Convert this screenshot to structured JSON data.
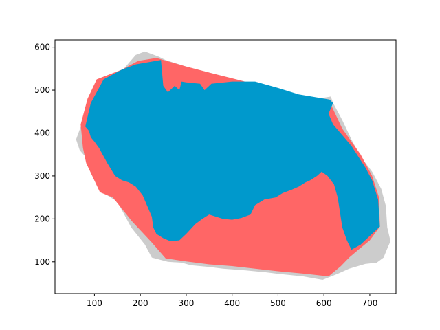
{
  "chart_data": {
    "type": "area",
    "title": "",
    "xlabel": "",
    "ylabel": "",
    "xlim": [
      14,
      757
    ],
    "ylim": [
      26,
      617
    ],
    "xticks": [
      100,
      200,
      300,
      400,
      500,
      600,
      700
    ],
    "yticks": [
      100,
      200,
      300,
      400,
      500,
      600
    ],
    "grid": false,
    "series": [
      {
        "role": "outline",
        "color": "#cccccc",
        "points": [
          [
            60,
            385
          ],
          [
            72,
            420
          ],
          [
            90,
            480
          ],
          [
            120,
            525
          ],
          [
            160,
            545
          ],
          [
            190,
            582
          ],
          [
            210,
            590
          ],
          [
            240,
            578
          ],
          [
            255,
            570
          ],
          [
            300,
            555
          ],
          [
            360,
            538
          ],
          [
            420,
            522
          ],
          [
            460,
            508
          ],
          [
            500,
            500
          ],
          [
            545,
            480
          ],
          [
            575,
            478
          ],
          [
            615,
            485
          ],
          [
            620,
            470
          ],
          [
            640,
            430
          ],
          [
            660,
            385
          ],
          [
            680,
            345
          ],
          [
            705,
            310
          ],
          [
            725,
            270
          ],
          [
            735,
            230
          ],
          [
            738,
            180
          ],
          [
            745,
            148
          ],
          [
            737,
            128
          ],
          [
            730,
            110
          ],
          [
            715,
            98
          ],
          [
            690,
            95
          ],
          [
            655,
            84
          ],
          [
            630,
            72
          ],
          [
            597,
            58
          ],
          [
            555,
            66
          ],
          [
            500,
            72
          ],
          [
            470,
            76
          ],
          [
            430,
            80
          ],
          [
            380,
            84
          ],
          [
            350,
            88
          ],
          [
            310,
            92
          ],
          [
            290,
            98
          ],
          [
            260,
            100
          ],
          [
            225,
            110
          ],
          [
            210,
            140
          ],
          [
            180,
            180
          ],
          [
            150,
            240
          ],
          [
            120,
            260
          ],
          [
            100,
            290
          ],
          [
            80,
            345
          ],
          [
            68,
            360
          ]
        ]
      },
      {
        "role": "region",
        "color": "#ff6666",
        "points": [
          [
            70,
            420
          ],
          [
            85,
            480
          ],
          [
            105,
            525
          ],
          [
            160,
            548
          ],
          [
            195,
            568
          ],
          [
            235,
            575
          ],
          [
            300,
            555
          ],
          [
            360,
            538
          ],
          [
            420,
            522
          ],
          [
            470,
            508
          ],
          [
            545,
            485
          ],
          [
            610,
            478
          ],
          [
            640,
            410
          ],
          [
            680,
            350
          ],
          [
            705,
            300
          ],
          [
            720,
            250
          ],
          [
            722,
            182
          ],
          [
            700,
            150
          ],
          [
            675,
            128
          ],
          [
            655,
            110
          ],
          [
            637,
            90
          ],
          [
            610,
            66
          ],
          [
            560,
            72
          ],
          [
            500,
            78
          ],
          [
            450,
            84
          ],
          [
            400,
            90
          ],
          [
            350,
            94
          ],
          [
            300,
            101
          ],
          [
            255,
            108
          ],
          [
            225,
            145
          ],
          [
            182,
            194
          ],
          [
            140,
            250
          ],
          [
            112,
            262
          ],
          [
            82,
            330
          ],
          [
            75,
            365
          ]
        ]
      },
      {
        "role": "core",
        "color": "#0099cc",
        "points": [
          [
            80,
            415
          ],
          [
            92,
            470
          ],
          [
            120,
            525
          ],
          [
            160,
            548
          ],
          [
            190,
            560
          ],
          [
            245,
            570
          ],
          [
            250,
            510
          ],
          [
            260,
            495
          ],
          [
            275,
            510
          ],
          [
            285,
            500
          ],
          [
            290,
            520
          ],
          [
            300,
            518
          ],
          [
            330,
            515
          ],
          [
            340,
            500
          ],
          [
            355,
            515
          ],
          [
            400,
            520
          ],
          [
            450,
            520
          ],
          [
            500,
            505
          ],
          [
            545,
            490
          ],
          [
            612,
            478
          ],
          [
            620,
            470
          ],
          [
            610,
            445
          ],
          [
            620,
            420
          ],
          [
            640,
            395
          ],
          [
            660,
            370
          ],
          [
            690,
            320
          ],
          [
            705,
            290
          ],
          [
            718,
            245
          ],
          [
            722,
            182
          ],
          [
            700,
            160
          ],
          [
            680,
            140
          ],
          [
            660,
            128
          ],
          [
            650,
            150
          ],
          [
            640,
            180
          ],
          [
            635,
            215
          ],
          [
            630,
            250
          ],
          [
            622,
            280
          ],
          [
            608,
            300
          ],
          [
            595,
            310
          ],
          [
            585,
            300
          ],
          [
            570,
            290
          ],
          [
            560,
            285
          ],
          [
            545,
            275
          ],
          [
            530,
            268
          ],
          [
            510,
            260
          ],
          [
            495,
            250
          ],
          [
            470,
            245
          ],
          [
            450,
            232
          ],
          [
            440,
            210
          ],
          [
            420,
            202
          ],
          [
            400,
            198
          ],
          [
            380,
            200
          ],
          [
            365,
            205
          ],
          [
            350,
            210
          ],
          [
            335,
            200
          ],
          [
            320,
            188
          ],
          [
            300,
            165
          ],
          [
            285,
            150
          ],
          [
            265,
            148
          ],
          [
            250,
            155
          ],
          [
            235,
            165
          ],
          [
            228,
            180
          ],
          [
            225,
            205
          ],
          [
            215,
            230
          ],
          [
            205,
            255
          ],
          [
            190,
            275
          ],
          [
            175,
            285
          ],
          [
            160,
            290
          ],
          [
            145,
            300
          ],
          [
            128,
            330
          ],
          [
            110,
            365
          ],
          [
            100,
            380
          ],
          [
            92,
            390
          ],
          [
            88,
            405
          ]
        ]
      }
    ]
  }
}
